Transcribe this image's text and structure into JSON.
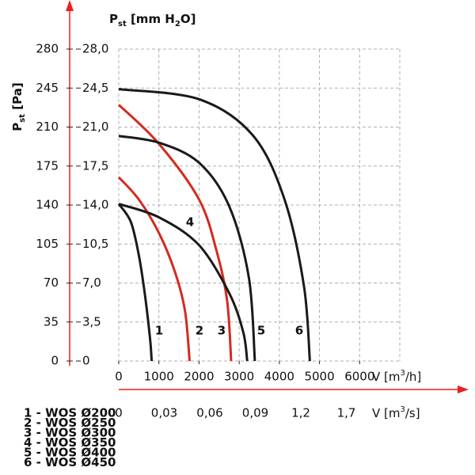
{
  "chart_data": {
    "type": "line",
    "y_label": [
      "P",
      "st",
      " [Pa]"
    ],
    "y2_label": [
      "P",
      "st",
      " [mm H",
      "2",
      "O]"
    ],
    "x_label": [
      "V [m",
      "3",
      "/h]"
    ],
    "x2_label": [
      "V [m",
      "3",
      "/s]"
    ],
    "xlim": [
      0,
      7000
    ],
    "xticks": [
      0,
      1000,
      2000,
      3000,
      4000,
      5000,
      6000
    ],
    "ylim": [
      0,
      280
    ],
    "yticks": [
      0,
      35,
      70,
      105,
      140,
      175,
      210,
      245,
      280
    ],
    "y2lim": [
      0,
      28
    ],
    "y2ticks": [
      0,
      {
        "value": 3.5,
        "label": "3,5"
      },
      {
        "value": 7,
        "label": "7,0"
      },
      {
        "value": 10.5,
        "label": "10,5"
      },
      {
        "value": 14,
        "label": "14,0"
      },
      {
        "value": 17.5,
        "label": "17,5"
      },
      {
        "value": 21,
        "label": "21,0"
      },
      {
        "value": 24.5,
        "label": "24,5"
      },
      {
        "value": 28,
        "label": "28,0"
      }
    ],
    "x2_tick_labels": [
      "0",
      "0,03",
      "0,06",
      "0,09",
      "1,2",
      "1,7"
    ],
    "grid": true,
    "axis_color": "#e8201e",
    "series": [
      {
        "name": "1 - WOS Ø200",
        "label": "1",
        "color": "#1a1a1a",
        "x": [
          0,
          300,
          500,
          650,
          780,
          820
        ],
        "values": [
          141,
          125,
          95,
          60,
          20,
          0
        ]
      },
      {
        "name": "2 - WOS Ø250",
        "label": "2",
        "color": "#d42a20",
        "x": [
          0,
          500,
          1000,
          1400,
          1650,
          1765
        ],
        "values": [
          165,
          145,
          115,
          80,
          45,
          0
        ]
      },
      {
        "name": "3 - WOS Ø300",
        "label": "3",
        "color": "#d42a20",
        "x": [
          0,
          1000,
          2000,
          2450,
          2700,
          2800
        ],
        "values": [
          230,
          195,
          145,
          97,
          54,
          0
        ]
      },
      {
        "name": "4 - WOS Ø350",
        "label": "4",
        "color": "#1a1a1a",
        "x": [
          0,
          1000,
          2000,
          2750,
          3100,
          3200
        ],
        "values": [
          141,
          129,
          104,
          61,
          26,
          0
        ]
      },
      {
        "name": "5 - WOS Ø400",
        "label": "5",
        "color": "#1a1a1a",
        "x": [
          0,
          1000,
          2000,
          2750,
          3240,
          3390
        ],
        "values": [
          202,
          196,
          178,
          139,
          75,
          0
        ]
      },
      {
        "name": "6 - WOS Ø450",
        "label": "6",
        "color": "#1a1a1a",
        "x": [
          0,
          2000,
          3330,
          4120,
          4610,
          4760
        ],
        "values": [
          244,
          235,
          203,
          146,
          68,
          0
        ]
      }
    ]
  }
}
